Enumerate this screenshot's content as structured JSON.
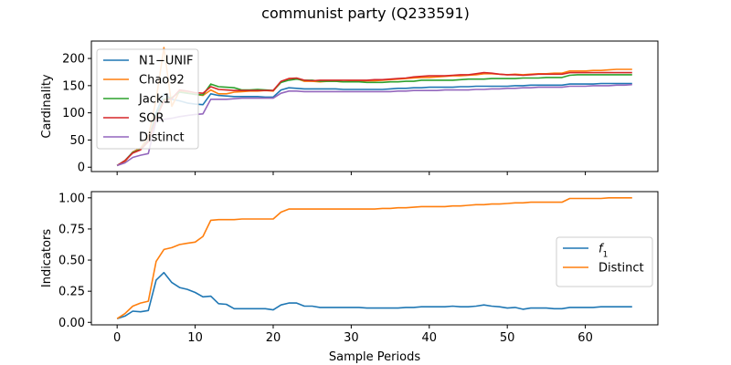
{
  "title": "communist party (Q233591)",
  "colors": {
    "blue": "#1f77b4",
    "orange": "#ff7f0e",
    "green": "#2ca02c",
    "red": "#d62728",
    "purple": "#9467bd"
  },
  "chart_data": [
    {
      "type": "line",
      "ylabel": "Cardinality",
      "xlabel": "",
      "xlim": [
        -3.3,
        69.3
      ],
      "ylim": [
        -8,
        232
      ],
      "xticks": [
        0,
        10,
        20,
        30,
        40,
        50,
        60
      ],
      "xtick_labels": [
        "",
        "",
        "",
        "",
        "",
        "",
        ""
      ],
      "yticks": [
        0,
        50,
        100,
        150,
        200
      ],
      "ytick_labels": [
        "0",
        "50",
        "100",
        "150",
        "200"
      ],
      "legend": "upper-left",
      "x": [
        0,
        1,
        2,
        3,
        4,
        5,
        6,
        7,
        8,
        9,
        10,
        11,
        12,
        13,
        14,
        15,
        16,
        17,
        18,
        19,
        20,
        21,
        22,
        23,
        24,
        25,
        26,
        27,
        28,
        29,
        30,
        31,
        32,
        33,
        34,
        35,
        36,
        37,
        38,
        39,
        40,
        41,
        42,
        43,
        44,
        45,
        46,
        47,
        48,
        49,
        50,
        51,
        52,
        53,
        54,
        55,
        56,
        57,
        58,
        59,
        60,
        61,
        62,
        63,
        64,
        65,
        66
      ],
      "series": [
        {
          "name": "N1−UNIF",
          "color": "#1f77b4",
          "values": [
            3,
            12,
            28,
            35,
            50,
            100,
            135,
            125,
            122,
            118,
            116,
            115,
            135,
            132,
            131,
            130,
            130,
            130,
            130,
            129,
            129,
            142,
            146,
            145,
            144,
            144,
            144,
            144,
            144,
            143,
            143,
            143,
            143,
            143,
            143,
            144,
            145,
            145,
            146,
            146,
            147,
            147,
            147,
            147,
            148,
            148,
            149,
            149,
            149,
            149,
            149,
            150,
            150,
            151,
            151,
            151,
            151,
            151,
            153,
            153,
            153,
            153,
            154,
            154,
            154,
            154,
            154
          ]
        },
        {
          "name": "Chao92",
          "color": "#ff7f0e",
          "values": [
            3,
            10,
            28,
            35,
            55,
            125,
            220,
            112,
            140,
            137,
            134,
            132,
            142,
            135,
            135,
            138,
            139,
            140,
            140,
            141,
            140,
            157,
            163,
            163,
            158,
            158,
            157,
            158,
            158,
            157,
            158,
            158,
            159,
            159,
            160,
            161,
            162,
            163,
            164,
            165,
            165,
            166,
            167,
            168,
            168,
            169,
            170,
            172,
            172,
            171,
            170,
            171,
            170,
            171,
            172,
            172,
            173,
            173,
            177,
            177,
            177,
            178,
            178,
            179,
            180,
            180,
            180
          ]
        },
        {
          "name": "Jack1",
          "color": "#2ca02c",
          "values": [
            3,
            12,
            27,
            33,
            48,
            95,
            125,
            128,
            138,
            136,
            134,
            133,
            153,
            148,
            147,
            146,
            142,
            142,
            143,
            142,
            141,
            156,
            160,
            162,
            160,
            160,
            158,
            158,
            158,
            157,
            157,
            157,
            156,
            156,
            156,
            157,
            157,
            158,
            158,
            160,
            160,
            160,
            160,
            160,
            161,
            162,
            162,
            162,
            163,
            163,
            163,
            163,
            164,
            164,
            164,
            165,
            165,
            165,
            169,
            170,
            170,
            170,
            170,
            170,
            170,
            170,
            170
          ]
        },
        {
          "name": "SOR",
          "color": "#d62728",
          "values": [
            3,
            12,
            26,
            32,
            47,
            90,
            122,
            126,
            142,
            140,
            137,
            136,
            148,
            143,
            142,
            141,
            141,
            141,
            141,
            141,
            141,
            158,
            163,
            164,
            160,
            159,
            160,
            160,
            160,
            160,
            160,
            160,
            160,
            161,
            161,
            162,
            163,
            164,
            166,
            167,
            168,
            168,
            168,
            169,
            170,
            170,
            172,
            174,
            173,
            171,
            170,
            170,
            169,
            170,
            171,
            171,
            171,
            171,
            174,
            174,
            174,
            174,
            174,
            174,
            174,
            174,
            174
          ]
        },
        {
          "name": "Distinct",
          "color": "#9467bd",
          "values": [
            3,
            8,
            18,
            22,
            25,
            85,
            88,
            90,
            93,
            95,
            97,
            98,
            125,
            125,
            125,
            126,
            127,
            127,
            127,
            127,
            127,
            136,
            140,
            140,
            139,
            139,
            139,
            139,
            139,
            139,
            139,
            139,
            139,
            139,
            139,
            139,
            140,
            140,
            141,
            141,
            141,
            141,
            142,
            142,
            142,
            142,
            143,
            143,
            144,
            144,
            145,
            145,
            146,
            146,
            147,
            147,
            147,
            147,
            149,
            149,
            149,
            150,
            150,
            150,
            151,
            151,
            152
          ]
        }
      ]
    },
    {
      "type": "line",
      "ylabel": "Indicators",
      "xlabel": "Sample Periods",
      "xlim": [
        -3.3,
        69.3
      ],
      "ylim": [
        -0.02,
        1.05
      ],
      "xticks": [
        0,
        10,
        20,
        30,
        40,
        50,
        60
      ],
      "xtick_labels": [
        "0",
        "10",
        "20",
        "30",
        "40",
        "50",
        "60"
      ],
      "yticks": [
        0.0,
        0.25,
        0.5,
        0.75,
        1.0
      ],
      "ytick_labels": [
        "0.00",
        "0.25",
        "0.50",
        "0.75",
        "1.00"
      ],
      "legend": "center-right",
      "x": [
        0,
        1,
        2,
        3,
        4,
        5,
        6,
        7,
        8,
        9,
        10,
        11,
        12,
        13,
        14,
        15,
        16,
        17,
        18,
        19,
        20,
        21,
        22,
        23,
        24,
        25,
        26,
        27,
        28,
        29,
        30,
        31,
        32,
        33,
        34,
        35,
        36,
        37,
        38,
        39,
        40,
        41,
        42,
        43,
        44,
        45,
        46,
        47,
        48,
        49,
        50,
        51,
        52,
        53,
        54,
        55,
        56,
        57,
        58,
        59,
        60,
        61,
        62,
        63,
        64,
        65,
        66
      ],
      "series": [
        {
          "name": "f1",
          "name_base": "f",
          "name_sub": "1",
          "color": "#1f77b4",
          "values": [
            0.03,
            0.05,
            0.09,
            0.085,
            0.095,
            0.34,
            0.4,
            0.32,
            0.28,
            0.265,
            0.24,
            0.205,
            0.21,
            0.15,
            0.145,
            0.11,
            0.11,
            0.11,
            0.11,
            0.11,
            0.1,
            0.14,
            0.155,
            0.155,
            0.13,
            0.13,
            0.12,
            0.12,
            0.12,
            0.12,
            0.12,
            0.12,
            0.115,
            0.115,
            0.115,
            0.115,
            0.115,
            0.12,
            0.12,
            0.125,
            0.125,
            0.125,
            0.125,
            0.13,
            0.125,
            0.125,
            0.13,
            0.14,
            0.13,
            0.125,
            0.115,
            0.12,
            0.105,
            0.115,
            0.115,
            0.115,
            0.11,
            0.11,
            0.12,
            0.12,
            0.12,
            0.12,
            0.125,
            0.125,
            0.125,
            0.125,
            0.125
          ]
        },
        {
          "name": "Distinct",
          "color": "#ff7f0e",
          "values": [
            0.03,
            0.07,
            0.13,
            0.155,
            0.17,
            0.49,
            0.585,
            0.6,
            0.625,
            0.635,
            0.645,
            0.69,
            0.82,
            0.825,
            0.825,
            0.825,
            0.83,
            0.83,
            0.83,
            0.83,
            0.83,
            0.885,
            0.91,
            0.91,
            0.91,
            0.91,
            0.91,
            0.91,
            0.91,
            0.91,
            0.91,
            0.91,
            0.91,
            0.91,
            0.915,
            0.915,
            0.92,
            0.92,
            0.925,
            0.93,
            0.93,
            0.93,
            0.93,
            0.935,
            0.935,
            0.94,
            0.945,
            0.945,
            0.95,
            0.95,
            0.955,
            0.96,
            0.96,
            0.965,
            0.965,
            0.965,
            0.965,
            0.965,
            0.995,
            0.995,
            0.995,
            0.995,
            0.995,
            1.0,
            1.0,
            1.0,
            1.0
          ]
        }
      ]
    }
  ]
}
